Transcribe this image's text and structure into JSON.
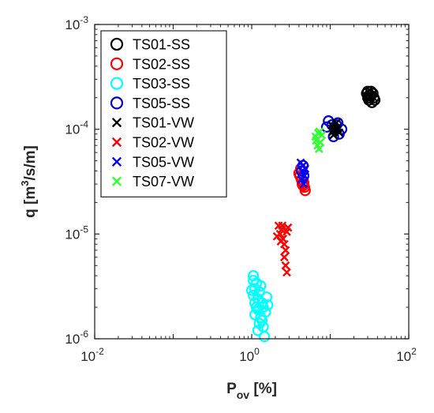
{
  "chart_data": {
    "type": "scatter",
    "title": "",
    "xlabel": {
      "main": "P",
      "sub": "ov",
      "unit": " [%]"
    },
    "ylabel": {
      "main": "q [m",
      "sup": "3",
      "unit": "/s/m]"
    },
    "xscale": "log",
    "yscale": "log",
    "xlim": [
      0.01,
      100
    ],
    "ylim": [
      1e-06,
      0.001
    ],
    "grid": false,
    "legend_position": "top-left",
    "x_ticks": [
      {
        "base": "10",
        "exp": "-2"
      },
      {
        "base": "10",
        "exp": "0"
      },
      {
        "base": "10",
        "exp": "2"
      }
    ],
    "y_ticks": [
      {
        "base": "10",
        "exp": "-6"
      },
      {
        "base": "10",
        "exp": "-5"
      },
      {
        "base": "10",
        "exp": "-4"
      },
      {
        "base": "10",
        "exp": "-3"
      }
    ],
    "series": [
      {
        "name": "TS01-SS",
        "marker": "circle",
        "color": "#000000",
        "points": [
          [
            30,
            0.00023
          ],
          [
            33,
            0.00021
          ],
          [
            31,
            0.00019
          ],
          [
            36,
            0.0002
          ],
          [
            29,
            0.00022
          ],
          [
            34,
            0.00018
          ],
          [
            32,
            0.0002
          ],
          [
            35,
            0.00022
          ],
          [
            30,
            0.0002
          ],
          [
            33,
            0.00023
          ],
          [
            31,
            0.00021
          ],
          [
            37,
            0.00019
          ]
        ]
      },
      {
        "name": "TS02-SS",
        "marker": "circle",
        "color": "#ff0000",
        "points": [
          [
            4.0,
            3.8e-05
          ],
          [
            4.3,
            3.3e-05
          ],
          [
            4.5,
            2.9e-05
          ],
          [
            4.8,
            2.6e-05
          ],
          [
            4.1,
            3.6e-05
          ],
          [
            4.6,
            3.1e-05
          ],
          [
            4.2,
            4.2e-05
          ],
          [
            4.4,
            3e-05
          ],
          [
            4.7,
            2.8e-05
          ]
        ]
      },
      {
        "name": "TS03-SS",
        "marker": "circle",
        "color": "#00ffff",
        "points": [
          [
            1.05,
            4e-06
          ],
          [
            1.15,
            3.4e-06
          ],
          [
            1.1,
            3e-06
          ],
          [
            1.25,
            2.8e-06
          ],
          [
            1.05,
            2.6e-06
          ],
          [
            1.2,
            2.4e-06
          ],
          [
            1.35,
            2.2e-06
          ],
          [
            1.1,
            2.2e-06
          ],
          [
            1.4,
            2e-06
          ],
          [
            1.2,
            1.9e-06
          ],
          [
            1.5,
            1.8e-06
          ],
          [
            1.1,
            1.7e-06
          ],
          [
            1.3,
            1.6e-06
          ],
          [
            1.6,
            2.1e-06
          ],
          [
            1.25,
            1.4e-06
          ],
          [
            1.4,
            1.3e-06
          ],
          [
            1.2,
            1.2e-06
          ],
          [
            1.45,
            1.05e-06
          ],
          [
            1.05,
            3.6e-06
          ],
          [
            1.3,
            3.2e-06
          ],
          [
            1.55,
            2.5e-06
          ],
          [
            1.15,
            2e-06
          ],
          [
            1.35,
            1.5e-06
          ],
          [
            1.0,
            2.9e-06
          ]
        ]
      },
      {
        "name": "TS05-SS",
        "marker": "circle",
        "color": "#0000cc",
        "points": [
          [
            9.5,
            0.00012
          ],
          [
            10.5,
            0.00011
          ],
          [
            11.5,
            0.0001
          ],
          [
            13,
            9e-05
          ],
          [
            12.5,
            0.000115
          ],
          [
            14,
            0.0001
          ],
          [
            9.0,
            0.000105
          ],
          [
            11,
            8.5e-05
          ],
          [
            12,
            0.00011
          ],
          [
            4.3,
            4e-05
          ],
          [
            4.6,
            3.6e-05
          ],
          [
            4.5,
            4.5e-05
          ]
        ]
      },
      {
        "name": "TS01-VW",
        "marker": "x",
        "color": "#000000",
        "points": [
          [
            10.5,
            0.00011
          ],
          [
            11.5,
            9.8e-05
          ],
          [
            12.5,
            0.0001
          ],
          [
            11,
            8.8e-05
          ],
          [
            12,
            0.000115
          ],
          [
            13,
            9.3e-05
          ],
          [
            11.3,
            0.000105
          ],
          [
            10.8,
            9.5e-05
          ]
        ]
      },
      {
        "name": "TS02-VW",
        "marker": "x",
        "color": "#ff0000",
        "points": [
          [
            2.2,
            1.2e-05
          ],
          [
            2.4,
            1.1e-05
          ],
          [
            2.3,
            1e-05
          ],
          [
            2.5,
            9e-06
          ],
          [
            2.6,
            8e-06
          ],
          [
            2.7,
            7e-06
          ],
          [
            2.1,
            9.5e-06
          ],
          [
            2.8,
            1.05e-05
          ],
          [
            2.6,
            6e-06
          ],
          [
            2.7,
            5e-06
          ],
          [
            2.8,
            4.3e-06
          ],
          [
            2.35,
            8.5e-06
          ],
          [
            2.9,
            1.15e-05
          ],
          [
            2.45,
            1.2e-05
          ]
        ]
      },
      {
        "name": "TS05-VW",
        "marker": "x",
        "color": "#0000ff",
        "points": [
          [
            4.2,
            4.8e-05
          ],
          [
            4.5,
            4.5e-05
          ],
          [
            4.4,
            4e-05
          ],
          [
            4.7,
            3.6e-05
          ],
          [
            4.3,
            3.3e-05
          ],
          [
            4.6,
            3e-05
          ],
          [
            4.8,
            4.2e-05
          ]
        ]
      },
      {
        "name": "TS07-VW",
        "marker": "x",
        "color": "#33ff33",
        "points": [
          [
            6.5,
            8.5e-05
          ],
          [
            7,
            9.2e-05
          ],
          [
            6.8,
            8e-05
          ],
          [
            7.5,
            7.5e-05
          ],
          [
            6.9,
            7e-05
          ],
          [
            7.2,
            6.5e-05
          ],
          [
            7.8,
            8.8e-05
          ],
          [
            7.3,
            9.5e-05
          ],
          [
            6.6,
            7.8e-05
          ]
        ]
      }
    ]
  }
}
